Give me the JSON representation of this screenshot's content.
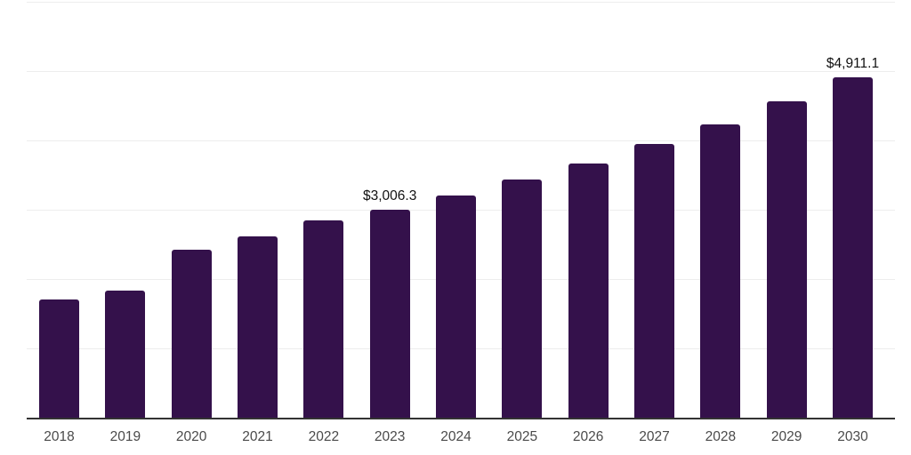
{
  "chart_style": {
    "background": "#ffffff",
    "bar_color": "#34114B",
    "gridline_color": "#ededed",
    "axis_line_color": "#333333",
    "tick_label_color": "#4a4a4a",
    "value_label_color": "#111111"
  },
  "chart_data": {
    "type": "bar",
    "title": "",
    "xlabel": "",
    "ylabel": "",
    "categories": [
      "2018",
      "2019",
      "2020",
      "2021",
      "2022",
      "2023",
      "2024",
      "2025",
      "2026",
      "2027",
      "2028",
      "2029",
      "2030"
    ],
    "values": [
      1710,
      1830,
      2420,
      2610,
      2850,
      3006.3,
      3210,
      3430,
      3670,
      3950,
      4230,
      4570,
      4911.1
    ],
    "ylim": [
      0,
      6000
    ],
    "grid_step": 1000,
    "grid": true,
    "legend": false,
    "y_tick_labels_visible": false,
    "annotations": [
      {
        "category": "2023",
        "text": "$3,006.3"
      },
      {
        "category": "2030",
        "text": "$4,911.1"
      }
    ]
  }
}
